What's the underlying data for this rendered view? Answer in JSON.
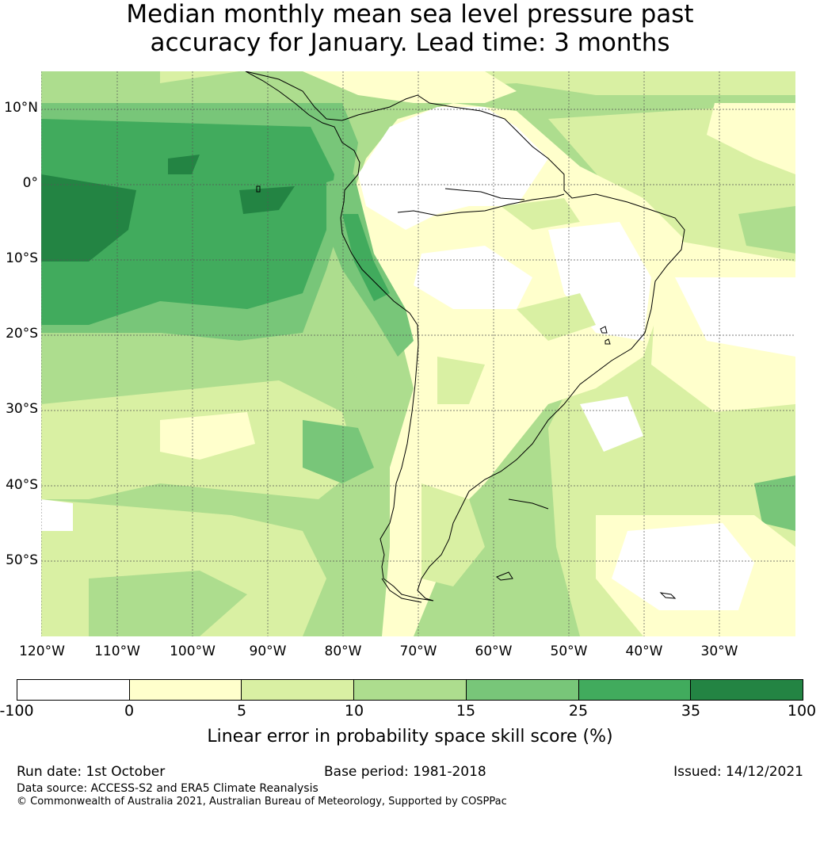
{
  "title": {
    "line1": "Median monthly mean sea level pressure past",
    "line2": "accuracy for January. Lead time: 3 months"
  },
  "map": {
    "longitude_labels": [
      "120°W",
      "110°W",
      "100°W",
      "90°W",
      "80°W",
      "70°W",
      "60°W",
      "50°W",
      "40°W",
      "30°W"
    ],
    "latitude_labels": [
      "10°N",
      "0°",
      "10°S",
      "20°S",
      "30°S",
      "40°S",
      "50°S"
    ],
    "region": "South America and surrounding oceans"
  },
  "colorbar": {
    "ticks": [
      "-100",
      "0",
      "5",
      "10",
      "15",
      "25",
      "35",
      "100"
    ],
    "colors": [
      "#ffffff",
      "#ffffcc",
      "#d9f0a3",
      "#addd8e",
      "#78c679",
      "#41ab5d",
      "#238443"
    ],
    "label": "Linear error in probability space skill score (%)"
  },
  "footer": {
    "run_date": "Run date: 1st October",
    "base_period": "Base period: 1981-2018",
    "issued": "Issued: 14/12/2021",
    "data_source": "Data source: ACCESS-S2 and ERA5 Climate Reanalysis",
    "copyright": "© Commonwealth of Australia 2021, Australian Bureau of Meteorology, Supported by COSPPac"
  }
}
